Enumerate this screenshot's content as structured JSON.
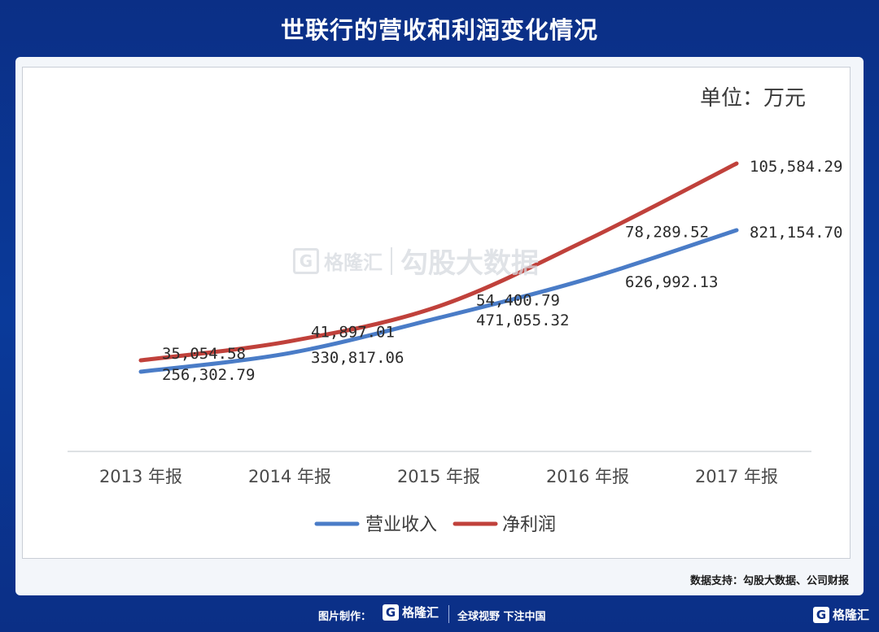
{
  "title": "世联行的营收和利润变化情况",
  "unit_label": "单位：万元",
  "source": "数据支持：勾股大数据、公司财报",
  "footer": {
    "credit_label": "图片制作：",
    "brand_name": "格隆汇",
    "slogan": "全球视野 下注中国"
  },
  "watermark": {
    "brand": "格隆汇",
    "text": "勾股大数据"
  },
  "colors": {
    "revenue": "#4a7cc7",
    "profit": "#c0413b",
    "background": "#0b2f86"
  },
  "chart_data": {
    "type": "line",
    "title": "世联行的营收和利润变化情况",
    "categories": [
      "2013 年报",
      "2014 年报",
      "2015 年报",
      "2016 年报",
      "2017 年报"
    ],
    "series": [
      {
        "name": "营业收入",
        "values": [
          256302.79,
          330817.06,
          471055.32,
          626992.13,
          821154.7
        ],
        "labels": [
          "256,302.79",
          "330,817.06",
          "471,055.32",
          "626,992.13",
          "821,154.70"
        ]
      },
      {
        "name": "净利润",
        "values": [
          35054.58,
          41897.01,
          54400.79,
          78289.52,
          105584.29
        ],
        "labels": [
          "35,054.58",
          "41,897.01",
          "54,400.79",
          "78,289.52",
          "105,584.29"
        ]
      }
    ],
    "grid": false,
    "legend": "bottom"
  }
}
